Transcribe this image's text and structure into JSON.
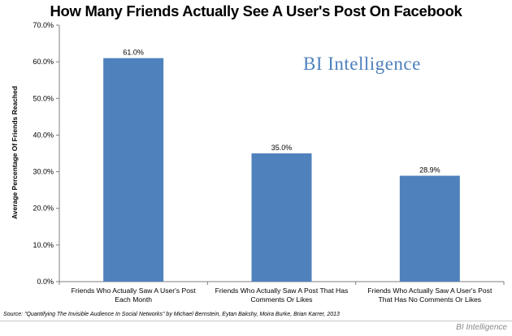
{
  "chart_data": {
    "type": "bar",
    "title": "How Many Friends Actually See A User's Post On Facebook",
    "xlabel": "",
    "ylabel": "Average Percentage Of Friends Reached",
    "ylim": [
      0,
      70
    ],
    "yticks": [
      0,
      10,
      20,
      30,
      40,
      50,
      60,
      70
    ],
    "ytick_labels": [
      "0.0%",
      "10.0%",
      "20.0%",
      "30.0%",
      "40.0%",
      "50.0%",
      "60.0%",
      "70.0%"
    ],
    "categories": [
      "Friends Who Actually Saw A User's Post Each Month",
      "Friends Who Actually Saw A Post That Has Comments Or Likes",
      "Friends Who Actually Saw A User's Post That Has No Comments Or Likes"
    ],
    "values": [
      61.0,
      35.0,
      28.9
    ],
    "data_labels": [
      "61.0%",
      "35.0%",
      "28.9%"
    ],
    "bar_color": "#4f81bd",
    "grid": false,
    "legend": "none"
  },
  "watermark": {
    "first": "BI",
    "rest": "Intelligence"
  },
  "source": "Source: \"Quantifying The Invisible Audience In Social Networks\" by Michael Bernstein, Eytan Bakshy, Moira Burke, Brian Karrer, 2013",
  "credit": "BI Intelligence"
}
